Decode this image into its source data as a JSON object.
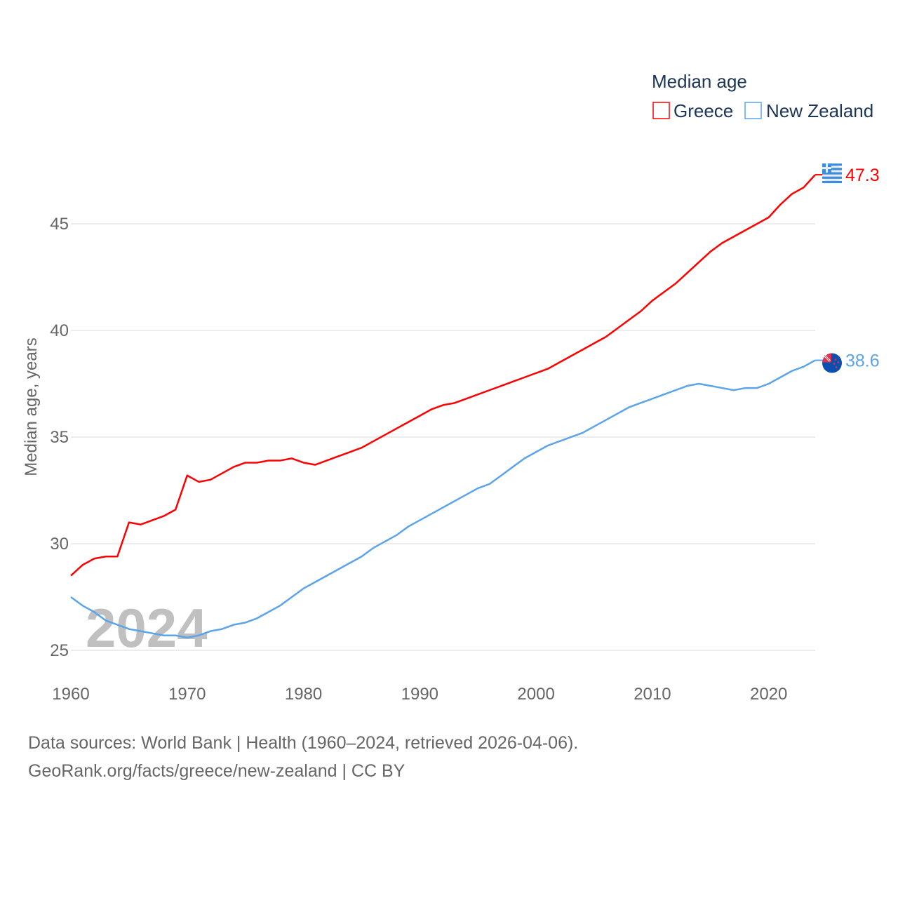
{
  "chart_data": {
    "type": "line",
    "title": "",
    "xlabel": "",
    "ylabel": "Median age, years",
    "xlim": [
      1960,
      2024
    ],
    "ylim": [
      25,
      48
    ],
    "yticks": [
      25,
      30,
      35,
      40,
      45
    ],
    "xticks": [
      1960,
      1970,
      1980,
      1990,
      2000,
      2010,
      2020
    ],
    "grid": true,
    "watermark_year": "2024",
    "legend": {
      "title": "Median age",
      "placement": "top-right"
    },
    "x": [
      1960,
      1961,
      1962,
      1963,
      1964,
      1965,
      1966,
      1967,
      1968,
      1969,
      1970,
      1971,
      1972,
      1973,
      1974,
      1975,
      1976,
      1977,
      1978,
      1979,
      1980,
      1981,
      1982,
      1983,
      1984,
      1985,
      1986,
      1987,
      1988,
      1989,
      1990,
      1991,
      1992,
      1993,
      1994,
      1995,
      1996,
      1997,
      1998,
      1999,
      2000,
      2001,
      2002,
      2003,
      2004,
      2005,
      2006,
      2007,
      2008,
      2009,
      2010,
      2011,
      2012,
      2013,
      2014,
      2015,
      2016,
      2017,
      2018,
      2019,
      2020,
      2021,
      2022,
      2023,
      2024
    ],
    "series": [
      {
        "name": "Greece",
        "color": "#ff0000",
        "end_label": "47.3",
        "values": [
          28.5,
          29.0,
          29.3,
          29.4,
          29.4,
          31.0,
          30.9,
          31.1,
          31.3,
          31.6,
          33.2,
          32.9,
          33.0,
          33.3,
          33.6,
          33.8,
          33.8,
          33.9,
          33.9,
          34.0,
          33.8,
          33.7,
          33.9,
          34.1,
          34.3,
          34.5,
          34.8,
          35.1,
          35.4,
          35.7,
          36.0,
          36.3,
          36.5,
          36.6,
          36.8,
          37.0,
          37.2,
          37.4,
          37.6,
          37.8,
          38.0,
          38.2,
          38.5,
          38.8,
          39.1,
          39.4,
          39.7,
          40.1,
          40.5,
          40.9,
          41.4,
          41.8,
          42.2,
          42.7,
          43.2,
          43.7,
          44.1,
          44.4,
          44.7,
          45.0,
          45.3,
          45.9,
          46.4,
          46.7,
          47.3
        ]
      },
      {
        "name": "New Zealand",
        "color": "#5ba4ea",
        "end_label": "38.6",
        "values": [
          27.5,
          27.1,
          26.8,
          26.4,
          26.2,
          26.0,
          25.9,
          25.8,
          25.7,
          25.7,
          25.6,
          25.7,
          25.9,
          26.0,
          26.2,
          26.3,
          26.5,
          26.8,
          27.1,
          27.5,
          27.9,
          28.2,
          28.5,
          28.8,
          29.1,
          29.4,
          29.8,
          30.1,
          30.4,
          30.8,
          31.1,
          31.4,
          31.7,
          32.0,
          32.3,
          32.6,
          32.8,
          33.2,
          33.6,
          34.0,
          34.3,
          34.6,
          34.8,
          35.0,
          35.2,
          35.5,
          35.8,
          36.1,
          36.4,
          36.6,
          36.8,
          37.0,
          37.2,
          37.4,
          37.5,
          37.4,
          37.3,
          37.2,
          37.3,
          37.3,
          37.5,
          37.8,
          38.1,
          38.3,
          38.6
        ]
      }
    ]
  },
  "footer": {
    "line1": "Data sources: World Bank | Health (1960–2024, retrieved 2026-04-06).",
    "line2": "GeoRank.org/facts/greece/new-zealand | CC BY"
  }
}
